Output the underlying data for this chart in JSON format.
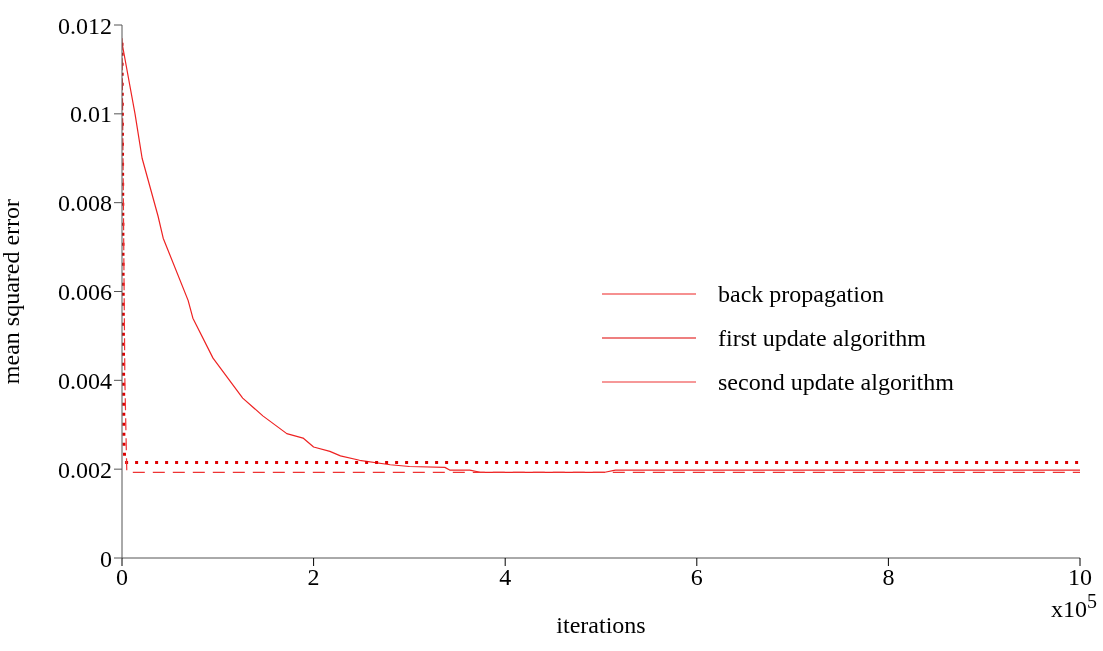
{
  "chart_data": {
    "type": "line",
    "xlabel": "iterations",
    "ylabel": "mean squared error",
    "annotations": [
      "x10$^{5}$"
    ],
    "xlim": [
      0,
      10
    ],
    "xticks": [
      0,
      2,
      4,
      6,
      8,
      10
    ],
    "ylim": [
      0,
      0.012
    ],
    "yticks": [
      0,
      0.002,
      0.004,
      0.006,
      0.008,
      0.01,
      0.012
    ],
    "grid": false,
    "legend": "right",
    "marker": "none",
    "series": [
      {
        "name": "back propagation",
        "color": "#ee2222",
        "line_style": "solid",
        "x": [
          0,
          0.136,
          0.21,
          0.376,
          0.43,
          0.69,
          0.74,
          0.95,
          1.26,
          1.47,
          1.72,
          1.89,
          2.0,
          2.17,
          2.28,
          2.48,
          2.8,
          3.0,
          3.37,
          3.42,
          3.63,
          3.74,
          5.04,
          5.15,
          10
        ],
        "values": [
          0.0116,
          0.01,
          0.009,
          0.0077,
          0.0072,
          0.0058,
          0.0054,
          0.0045,
          0.0036,
          0.0032,
          0.0028,
          0.0027,
          0.0025,
          0.0024,
          0.0023,
          0.0022,
          0.0021,
          0.00206,
          0.00204,
          0.00198,
          0.00198,
          0.00193,
          0.00193,
          0.00198,
          0.00198
        ]
      },
      {
        "name": "first update algorithm",
        "color": "#dd0000",
        "line_style": "dotted",
        "x": [
          0,
          0.02,
          0.03,
          10
        ],
        "values": [
          0.0116,
          0.0026,
          0.00215,
          0.00215
        ]
      },
      {
        "name": "second update algorithm",
        "color": "#ee3333",
        "line_style": "dashed",
        "x": [
          0,
          0.03,
          0.05,
          10
        ],
        "values": [
          0.0117,
          0.004,
          0.00193,
          0.00193
        ]
      }
    ]
  }
}
